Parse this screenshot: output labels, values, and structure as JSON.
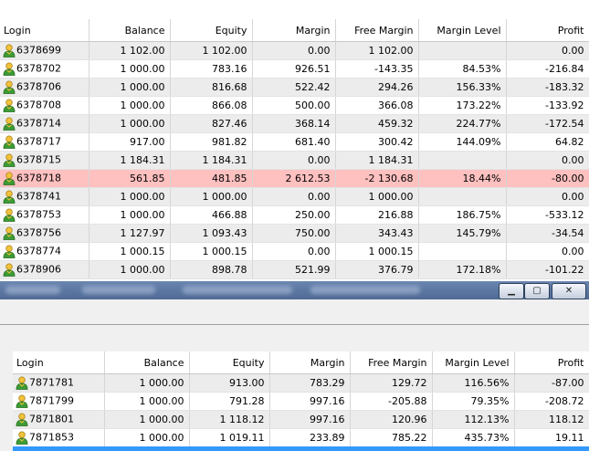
{
  "columns": [
    "Login",
    "Balance",
    "Equity",
    "Margin",
    "Free Margin",
    "Margin Level",
    "Profit"
  ],
  "top_rows": [
    {
      "login": "6378699",
      "balance": "1 102.00",
      "equity": "1 102.00",
      "margin": "0.00",
      "free_margin": "1 102.00",
      "margin_level": "",
      "profit": "0.00"
    },
    {
      "login": "6378702",
      "balance": "1 000.00",
      "equity": "783.16",
      "margin": "926.51",
      "free_margin": "-143.35",
      "margin_level": "84.53%",
      "profit": "-216.84"
    },
    {
      "login": "6378706",
      "balance": "1 000.00",
      "equity": "816.68",
      "margin": "522.42",
      "free_margin": "294.26",
      "margin_level": "156.33%",
      "profit": "-183.32"
    },
    {
      "login": "6378708",
      "balance": "1 000.00",
      "equity": "866.08",
      "margin": "500.00",
      "free_margin": "366.08",
      "margin_level": "173.22%",
      "profit": "-133.92"
    },
    {
      "login": "6378714",
      "balance": "1 000.00",
      "equity": "827.46",
      "margin": "368.14",
      "free_margin": "459.32",
      "margin_level": "224.77%",
      "profit": "-172.54"
    },
    {
      "login": "6378717",
      "balance": "917.00",
      "equity": "981.82",
      "margin": "681.40",
      "free_margin": "300.42",
      "margin_level": "144.09%",
      "profit": "64.82"
    },
    {
      "login": "6378715",
      "balance": "1 184.31",
      "equity": "1 184.31",
      "margin": "0.00",
      "free_margin": "1 184.31",
      "margin_level": "",
      "profit": "0.00"
    },
    {
      "login": "6378718",
      "balance": "561.85",
      "equity": "481.85",
      "margin": "2 612.53",
      "free_margin": "-2 130.68",
      "margin_level": "18.44%",
      "profit": "-80.00",
      "alert": true
    },
    {
      "login": "6378741",
      "balance": "1 000.00",
      "equity": "1 000.00",
      "margin": "0.00",
      "free_margin": "1 000.00",
      "margin_level": "",
      "profit": "0.00"
    },
    {
      "login": "6378753",
      "balance": "1 000.00",
      "equity": "466.88",
      "margin": "250.00",
      "free_margin": "216.88",
      "margin_level": "186.75%",
      "profit": "-533.12"
    },
    {
      "login": "6378756",
      "balance": "1 127.97",
      "equity": "1 093.43",
      "margin": "750.00",
      "free_margin": "343.43",
      "margin_level": "145.79%",
      "profit": "-34.54"
    },
    {
      "login": "6378774",
      "balance": "1 000.15",
      "equity": "1 000.15",
      "margin": "0.00",
      "free_margin": "1 000.15",
      "margin_level": "",
      "profit": "0.00"
    },
    {
      "login": "6378906",
      "balance": "1 000.00",
      "equity": "898.78",
      "margin": "521.99",
      "free_margin": "376.79",
      "margin_level": "172.18%",
      "profit": "-101.22"
    }
  ],
  "bottom_rows": [
    {
      "login": "7871781",
      "balance": "1 000.00",
      "equity": "913.00",
      "margin": "783.29",
      "free_margin": "129.72",
      "margin_level": "116.56%",
      "profit": "-87.00"
    },
    {
      "login": "7871799",
      "balance": "1 000.00",
      "equity": "791.28",
      "margin": "997.16",
      "free_margin": "-205.88",
      "margin_level": "79.35%",
      "profit": "-208.72"
    },
    {
      "login": "7871801",
      "balance": "1 000.00",
      "equity": "1 118.12",
      "margin": "997.16",
      "free_margin": "120.96",
      "margin_level": "112.13%",
      "profit": "118.12"
    },
    {
      "login": "7871853",
      "balance": "1 000.00",
      "equity": "1 019.11",
      "margin": "233.89",
      "free_margin": "785.22",
      "margin_level": "435.73%",
      "profit": "19.11"
    }
  ],
  "window_controls": {
    "minimize": "▁",
    "maximize": "▢",
    "close": "✕"
  },
  "panel_close": "×",
  "colors": {
    "alert_row": "#ffc0c0",
    "even_row": "#ececec",
    "selection": "#3399ff",
    "taskbar": "#5873a0"
  },
  "icons": {
    "row_icon": "user-icon"
  }
}
